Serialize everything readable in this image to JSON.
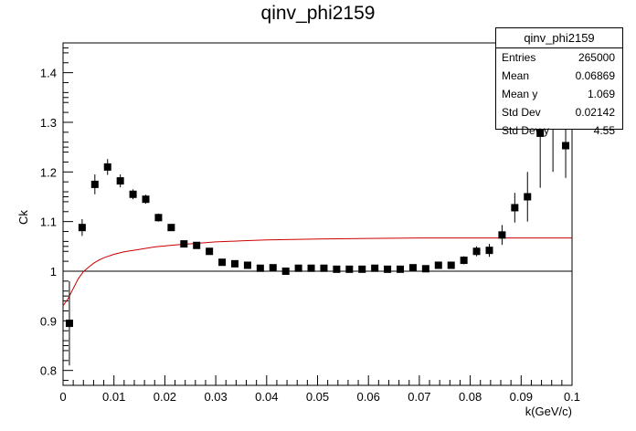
{
  "chart_data": {
    "type": "scatter",
    "title": "qinv_phi2159",
    "xlabel": "k(GeV/c)",
    "ylabel": "Ck",
    "xlim": [
      0,
      0.1
    ],
    "ylim": [
      0.77,
      1.46
    ],
    "x_ticks": [
      "0",
      "0.01",
      "0.02",
      "0.03",
      "0.04",
      "0.05",
      "0.06",
      "0.07",
      "0.08",
      "0.09",
      "0.1"
    ],
    "y_ticks": [
      "0.8",
      "0.9",
      "1",
      "1.1",
      "1.2",
      "1.3",
      "1.4"
    ],
    "reference_line": 1.0,
    "grid": false,
    "series": [
      {
        "type": "points_with_errors",
        "color": "#000000",
        "points": [
          {
            "x": 0.00125,
            "y": 0.895,
            "err": 0.085
          },
          {
            "x": 0.00375,
            "y": 1.088,
            "err": 0.017
          },
          {
            "x": 0.00625,
            "y": 1.175,
            "err": 0.02
          },
          {
            "x": 0.00875,
            "y": 1.21,
            "err": 0.016
          },
          {
            "x": 0.01125,
            "y": 1.182,
            "err": 0.013
          },
          {
            "x": 0.01375,
            "y": 1.155,
            "err": 0.01
          },
          {
            "x": 0.01625,
            "y": 1.145,
            "err": 0.009
          },
          {
            "x": 0.01875,
            "y": 1.108,
            "err": 0.008
          },
          {
            "x": 0.02125,
            "y": 1.088,
            "err": 0.007
          },
          {
            "x": 0.02375,
            "y": 1.055,
            "err": 0.006
          },
          {
            "x": 0.02625,
            "y": 1.052,
            "err": 0.006
          },
          {
            "x": 0.02875,
            "y": 1.04,
            "err": 0.005
          },
          {
            "x": 0.03125,
            "y": 1.018,
            "err": 0.005
          },
          {
            "x": 0.03375,
            "y": 1.015,
            "err": 0.004
          },
          {
            "x": 0.03625,
            "y": 1.012,
            "err": 0.004
          },
          {
            "x": 0.03875,
            "y": 1.006,
            "err": 0.004
          },
          {
            "x": 0.04125,
            "y": 1.007,
            "err": 0.004
          },
          {
            "x": 0.04375,
            "y": 1.0,
            "err": 0.004
          },
          {
            "x": 0.04625,
            "y": 1.006,
            "err": 0.004
          },
          {
            "x": 0.04875,
            "y": 1.006,
            "err": 0.004
          },
          {
            "x": 0.05125,
            "y": 1.006,
            "err": 0.004
          },
          {
            "x": 0.05375,
            "y": 1.004,
            "err": 0.004
          },
          {
            "x": 0.05625,
            "y": 1.004,
            "err": 0.004
          },
          {
            "x": 0.05875,
            "y": 1.004,
            "err": 0.004
          },
          {
            "x": 0.06125,
            "y": 1.006,
            "err": 0.004
          },
          {
            "x": 0.06375,
            "y": 1.004,
            "err": 0.004
          },
          {
            "x": 0.06625,
            "y": 1.004,
            "err": 0.004
          },
          {
            "x": 0.06875,
            "y": 1.007,
            "err": 0.005
          },
          {
            "x": 0.07125,
            "y": 1.005,
            "err": 0.005
          },
          {
            "x": 0.07375,
            "y": 1.012,
            "err": 0.006
          },
          {
            "x": 0.07625,
            "y": 1.012,
            "err": 0.006
          },
          {
            "x": 0.07875,
            "y": 1.022,
            "err": 0.008
          },
          {
            "x": 0.08125,
            "y": 1.04,
            "err": 0.01
          },
          {
            "x": 0.08375,
            "y": 1.042,
            "err": 0.013
          },
          {
            "x": 0.08625,
            "y": 1.073,
            "err": 0.02
          },
          {
            "x": 0.08875,
            "y": 1.128,
            "err": 0.03
          },
          {
            "x": 0.09125,
            "y": 1.15,
            "err": 0.05
          },
          {
            "x": 0.09375,
            "y": 1.278,
            "err": 0.11
          },
          {
            "x": 0.09625,
            "y": 1.34,
            "err": 0.14
          },
          {
            "x": 0.09875,
            "y": 1.253,
            "err": 0.065
          }
        ]
      },
      {
        "type": "fit_curve",
        "color": "#cc0000",
        "points": [
          [
            0.0,
            0.93
          ],
          [
            0.001,
            0.945
          ],
          [
            0.002,
            0.965
          ],
          [
            0.003,
            0.985
          ],
          [
            0.004,
            0.999
          ],
          [
            0.005,
            1.008
          ],
          [
            0.006,
            1.016
          ],
          [
            0.007,
            1.022
          ],
          [
            0.008,
            1.027
          ],
          [
            0.01,
            1.034
          ],
          [
            0.012,
            1.039
          ],
          [
            0.015,
            1.044
          ],
          [
            0.018,
            1.049
          ],
          [
            0.022,
            1.053
          ],
          [
            0.026,
            1.056
          ],
          [
            0.03,
            1.059
          ],
          [
            0.035,
            1.061
          ],
          [
            0.04,
            1.063
          ],
          [
            0.05,
            1.065
          ],
          [
            0.06,
            1.066
          ],
          [
            0.07,
            1.067
          ],
          [
            0.08,
            1.067
          ],
          [
            0.09,
            1.067
          ],
          [
            0.1,
            1.067
          ]
        ]
      }
    ]
  },
  "stats_box": {
    "title": "qinv_phi2159",
    "rows": [
      {
        "label": "Entries",
        "value": "265000"
      },
      {
        "label": "Mean",
        "value": "0.06869"
      },
      {
        "label": "Mean y",
        "value": "1.069"
      },
      {
        "label": "Std Dev",
        "value": "0.02142"
      },
      {
        "label": "Std Dev y",
        "value": "4.55"
      }
    ]
  }
}
